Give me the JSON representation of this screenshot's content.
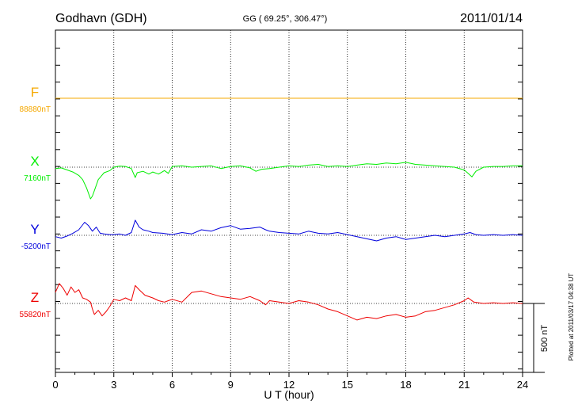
{
  "header": {
    "station": "Godhavn (GDH)",
    "coords": "GG ( 69.25°, 306.47°)",
    "date": "2011/01/14"
  },
  "footnote": "Plotted at 2011/03/17 04:38 UT",
  "scale_bar_label": "500 nT",
  "chart_data": {
    "type": "line",
    "xlabel": "U T (hour)",
    "ylabel": "",
    "xlim": [
      0,
      24
    ],
    "xticks": [
      "0",
      "3",
      "6",
      "9",
      "12",
      "15",
      "18",
      "21",
      "24"
    ],
    "y_unit": "nT",
    "scale_bar_nT": 500,
    "grid": true,
    "series": [
      {
        "name": "F",
        "baseline_label": "88880nT",
        "color": "#f5a800",
        "x": [
          0,
          24
        ],
        "dev": [
          0,
          0
        ]
      },
      {
        "name": "X",
        "baseline_label": "7160nT",
        "color": "#00ee00",
        "x": [
          0,
          0.3,
          0.6,
          0.9,
          1.2,
          1.4,
          1.6,
          1.7,
          1.8,
          1.9,
          2.0,
          2.2,
          2.5,
          2.8,
          3.0,
          3.3,
          3.6,
          3.9,
          4.1,
          4.2,
          4.5,
          4.8,
          5.0,
          5.3,
          5.6,
          5.8,
          6.0,
          6.5,
          7.0,
          7.5,
          8.0,
          8.5,
          9.0,
          9.5,
          10.0,
          10.3,
          10.6,
          11.0,
          11.5,
          12.0,
          12.5,
          13.0,
          13.5,
          14.0,
          14.5,
          15.0,
          15.5,
          16.0,
          16.5,
          17.0,
          17.5,
          18.0,
          18.5,
          19.0,
          19.5,
          20.0,
          20.5,
          21.0,
          21.2,
          21.4,
          21.6,
          22.0,
          22.5,
          23.0,
          23.5,
          24.0
        ],
        "dev": [
          -10,
          -5,
          -20,
          -35,
          -60,
          -90,
          -150,
          -190,
          -230,
          -210,
          -170,
          -90,
          -40,
          -25,
          0,
          8,
          5,
          -10,
          -75,
          -40,
          -30,
          -50,
          -35,
          -50,
          -25,
          -45,
          5,
          10,
          0,
          5,
          10,
          -10,
          5,
          10,
          -5,
          -30,
          -15,
          -10,
          0,
          10,
          5,
          15,
          20,
          5,
          10,
          5,
          15,
          25,
          20,
          30,
          25,
          35,
          20,
          15,
          10,
          5,
          0,
          -20,
          -45,
          -70,
          -30,
          0,
          5,
          5,
          10,
          10
        ]
      },
      {
        "name": "Y",
        "baseline_label": "-5200nT",
        "color": "#0000dd",
        "x": [
          0,
          0.3,
          0.6,
          0.9,
          1.2,
          1.5,
          1.7,
          1.9,
          2.1,
          2.3,
          2.5,
          2.8,
          3.0,
          3.3,
          3.6,
          3.9,
          4.1,
          4.3,
          4.5,
          4.8,
          5.0,
          5.5,
          6.0,
          6.5,
          7.0,
          7.5,
          8.0,
          8.5,
          9.0,
          9.5,
          10.0,
          10.5,
          10.8,
          11.0,
          11.5,
          12.0,
          12.5,
          13.0,
          13.5,
          14.0,
          14.5,
          15.0,
          15.5,
          16.0,
          16.5,
          17.0,
          17.5,
          18.0,
          18.5,
          19.0,
          19.5,
          20.0,
          20.5,
          21.0,
          21.3,
          21.6,
          22.0,
          22.5,
          23.0,
          23.5,
          24.0
        ],
        "dev": [
          -10,
          -20,
          -5,
          15,
          40,
          95,
          70,
          30,
          60,
          15,
          10,
          5,
          5,
          10,
          0,
          20,
          110,
          60,
          40,
          30,
          20,
          15,
          5,
          20,
          10,
          40,
          30,
          55,
          70,
          45,
          50,
          60,
          40,
          30,
          20,
          15,
          10,
          30,
          15,
          10,
          20,
          5,
          -10,
          -25,
          -40,
          -20,
          -10,
          -30,
          -20,
          -10,
          0,
          -10,
          0,
          10,
          20,
          5,
          0,
          5,
          0,
          5,
          0
        ]
      },
      {
        "name": "Z",
        "baseline_label": "55820nT",
        "color": "#ee0000",
        "x": [
          0,
          0.2,
          0.4,
          0.6,
          0.8,
          1.0,
          1.2,
          1.4,
          1.6,
          1.8,
          1.9,
          2.0,
          2.2,
          2.4,
          2.6,
          2.8,
          3.0,
          3.3,
          3.6,
          3.9,
          4.1,
          4.3,
          4.6,
          5.0,
          5.3,
          5.6,
          5.8,
          6.0,
          6.5,
          7.0,
          7.5,
          8.0,
          8.5,
          9.0,
          9.5,
          10.0,
          10.5,
          10.8,
          11.0,
          11.5,
          12.0,
          12.5,
          13.0,
          13.5,
          14.0,
          14.5,
          15.0,
          15.5,
          16.0,
          16.5,
          17.0,
          17.5,
          18.0,
          18.5,
          19.0,
          19.5,
          20.0,
          20.5,
          21.0,
          21.2,
          21.5,
          22.0,
          22.5,
          23.0,
          23.5,
          24.0
        ],
        "dev": [
          80,
          145,
          110,
          60,
          120,
          80,
          100,
          40,
          30,
          10,
          -40,
          -80,
          -50,
          -90,
          -60,
          -20,
          30,
          20,
          40,
          20,
          130,
          100,
          60,
          40,
          20,
          10,
          20,
          30,
          10,
          80,
          90,
          70,
          50,
          40,
          30,
          50,
          20,
          -10,
          20,
          10,
          0,
          20,
          10,
          -10,
          -40,
          -60,
          -90,
          -120,
          -100,
          -110,
          -90,
          -80,
          -100,
          -90,
          -60,
          -50,
          -30,
          -10,
          20,
          40,
          10,
          0,
          5,
          0,
          5,
          0
        ]
      }
    ]
  }
}
